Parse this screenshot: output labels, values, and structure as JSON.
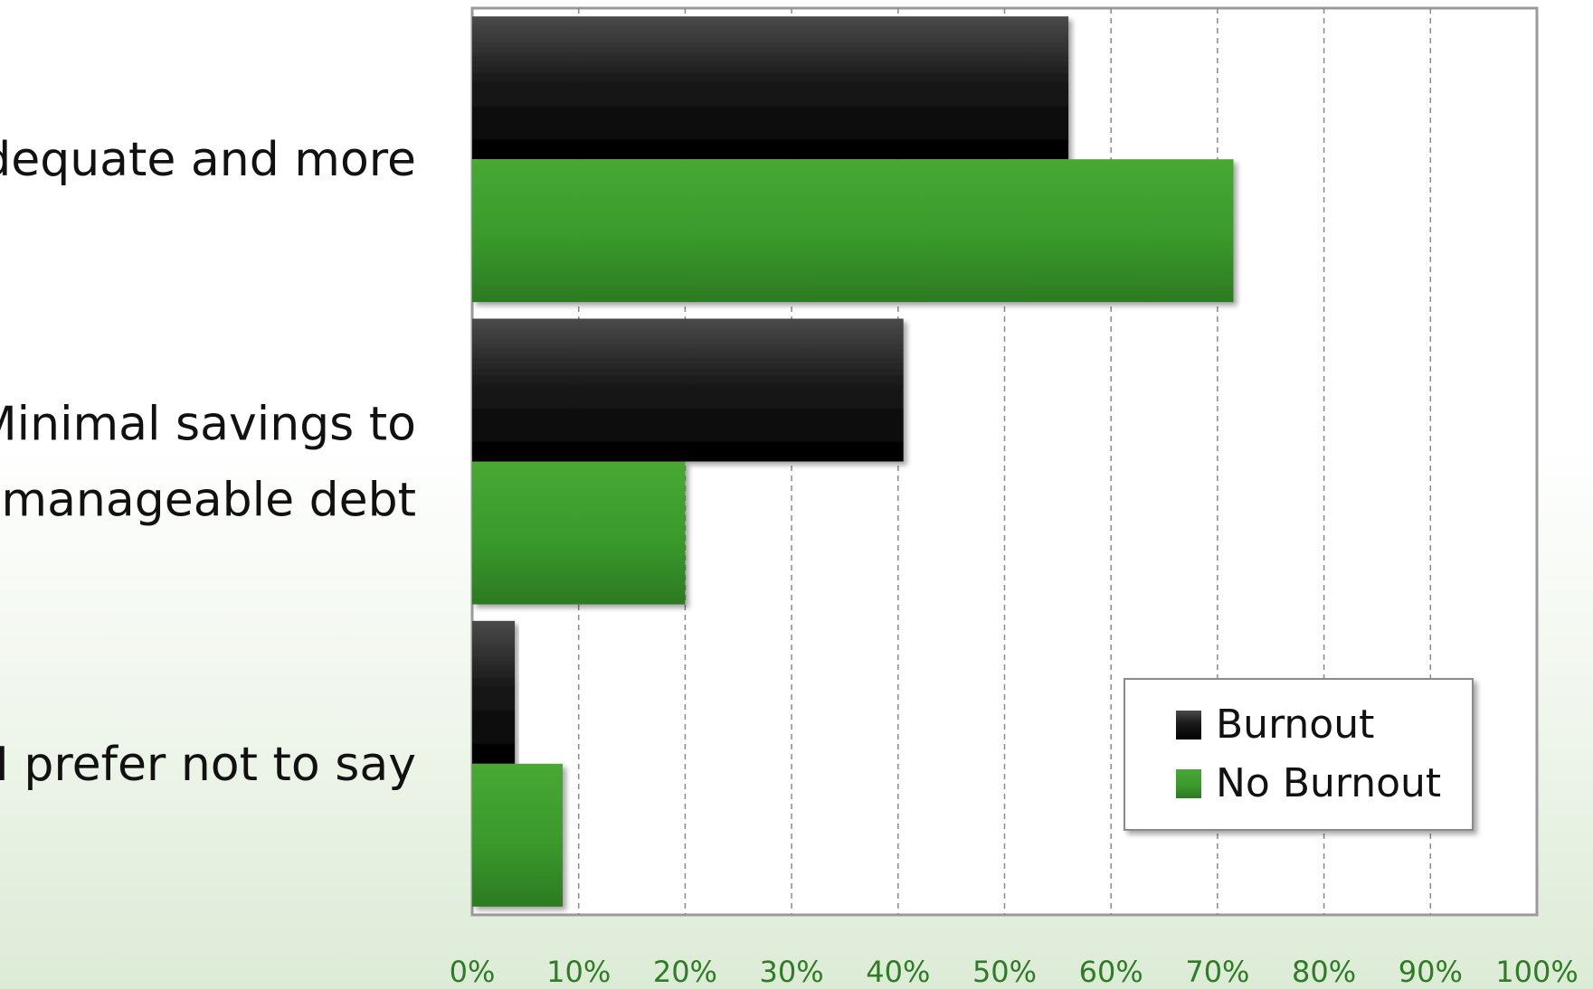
{
  "chart_data": {
    "type": "bar",
    "orientation": "horizontal",
    "categories": [
      [
        "Adequate and more"
      ],
      [
        "Minimal savings to",
        "unmanageable debt"
      ],
      [
        "I prefer not to say"
      ]
    ],
    "series": [
      {
        "name": "Burnout",
        "values": [
          56,
          40.5,
          4
        ],
        "color": "#111111"
      },
      {
        "name": "No Burnout",
        "values": [
          71.5,
          20,
          8.5
        ],
        "color": "#3a9a2c"
      }
    ],
    "xlim": [
      0,
      100
    ],
    "x_ticks": [
      "0%",
      "10%",
      "20%",
      "30%",
      "40%",
      "50%",
      "60%",
      "70%",
      "80%",
      "90%",
      "100%"
    ],
    "grid": true,
    "legend_position": "bottom-right",
    "title": "",
    "xlabel": "",
    "ylabel": ""
  }
}
